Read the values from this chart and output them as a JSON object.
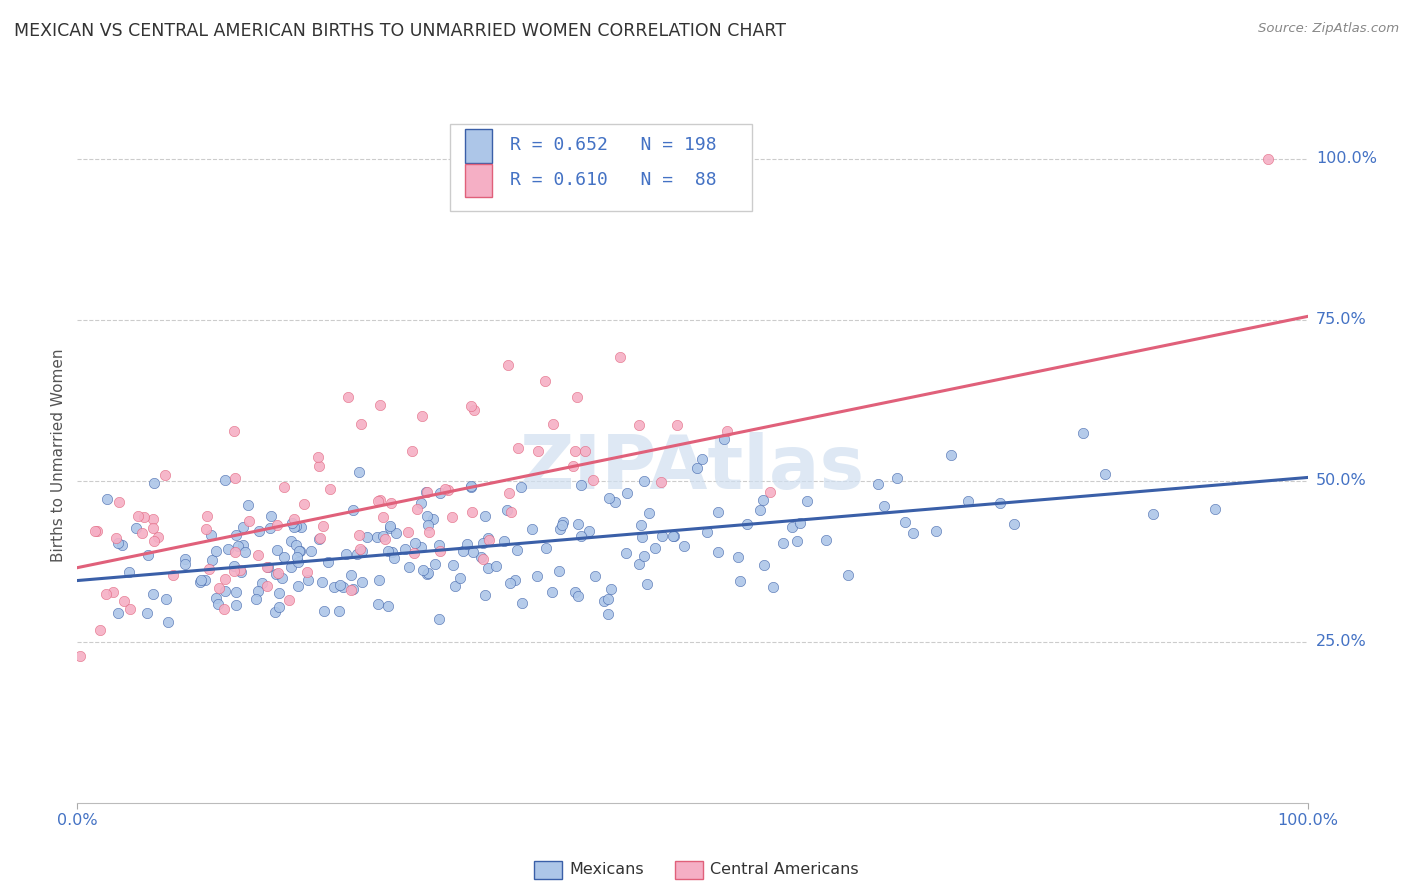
{
  "title": "MEXICAN VS CENTRAL AMERICAN BIRTHS TO UNMARRIED WOMEN CORRELATION CHART",
  "source": "Source: ZipAtlas.com",
  "ylabel": "Births to Unmarried Women",
  "mexicans_R": 0.652,
  "mexicans_N": 198,
  "central_americans_R": 0.61,
  "central_americans_N": 88,
  "scatter_color_mexicans": "#adc6e8",
  "scatter_color_ca": "#f5afc5",
  "line_color_mexicans": "#3a5fa8",
  "line_color_ca": "#e0607a",
  "watermark_color": "#d0dff0",
  "tick_label_color": "#4472c4",
  "title_color": "#333333",
  "grid_color": "#cccccc",
  "legend_label1": "Mexicans",
  "legend_label2": "Central Americans",
  "xlim": [
    0.0,
    1.0
  ],
  "ylim": [
    0.0,
    1.08
  ],
  "ytick_positions": [
    0.25,
    0.5,
    0.75,
    1.0
  ],
  "ytick_labels": [
    "25.0%",
    "50.0%",
    "75.0%",
    "100.0%"
  ],
  "mex_line_x0": 0.0,
  "mex_line_y0": 0.345,
  "mex_line_x1": 1.0,
  "mex_line_y1": 0.505,
  "ca_line_x0": 0.0,
  "ca_line_y0": 0.365,
  "ca_line_x1": 1.0,
  "ca_line_y1": 0.755,
  "seed": 42
}
